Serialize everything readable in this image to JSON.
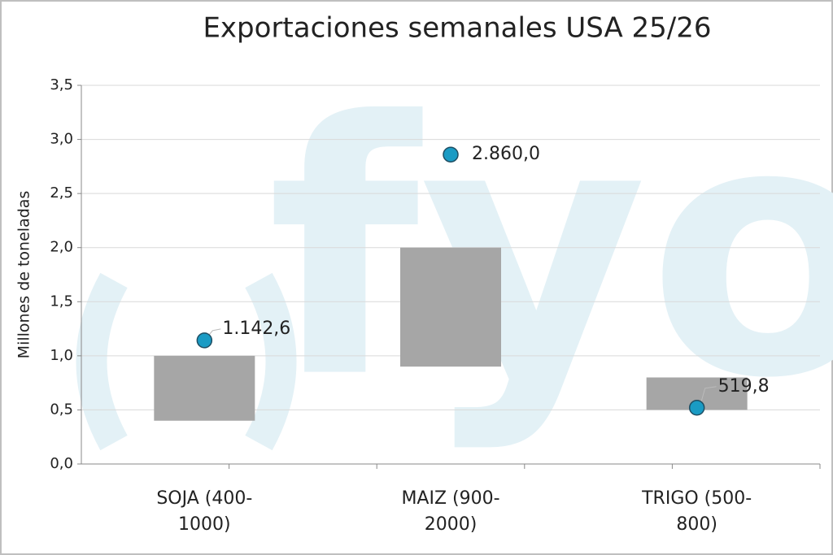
{
  "chart_data": {
    "type": "range_dot",
    "title": "Exportaciones semanales USA  25/26",
    "y_label": "Millones de toneladas",
    "watermark": "fyo",
    "categories": [
      "SOJA (400-1000)",
      "MAIZ (900-2000)",
      "TRIGO (500-800)"
    ],
    "ranges": [
      [
        0.4,
        1.0
      ],
      [
        0.9,
        2.0
      ],
      [
        0.5,
        0.8
      ]
    ],
    "range_color": "#a6a6a6",
    "values": [
      1.1426,
      2.86,
      0.5198
    ],
    "value_labels": [
      "1.142,6",
      "2.860,0",
      "519,8"
    ],
    "color": "#1a9bc4",
    "ylim": [
      0,
      3.5
    ],
    "yticks": [
      {
        "value": 0,
        "label": "0,0"
      },
      {
        "value": 0.5,
        "label": "0,5"
      },
      {
        "value": 1,
        "label": "1,0"
      },
      {
        "value": 1.5,
        "label": "1,5"
      },
      {
        "value": 2,
        "label": "2,0"
      },
      {
        "value": 2.5,
        "label": "2,5"
      },
      {
        "value": 3,
        "label": "3,0"
      },
      {
        "value": 3.5,
        "label": "3,5"
      }
    ],
    "grid": true
  }
}
